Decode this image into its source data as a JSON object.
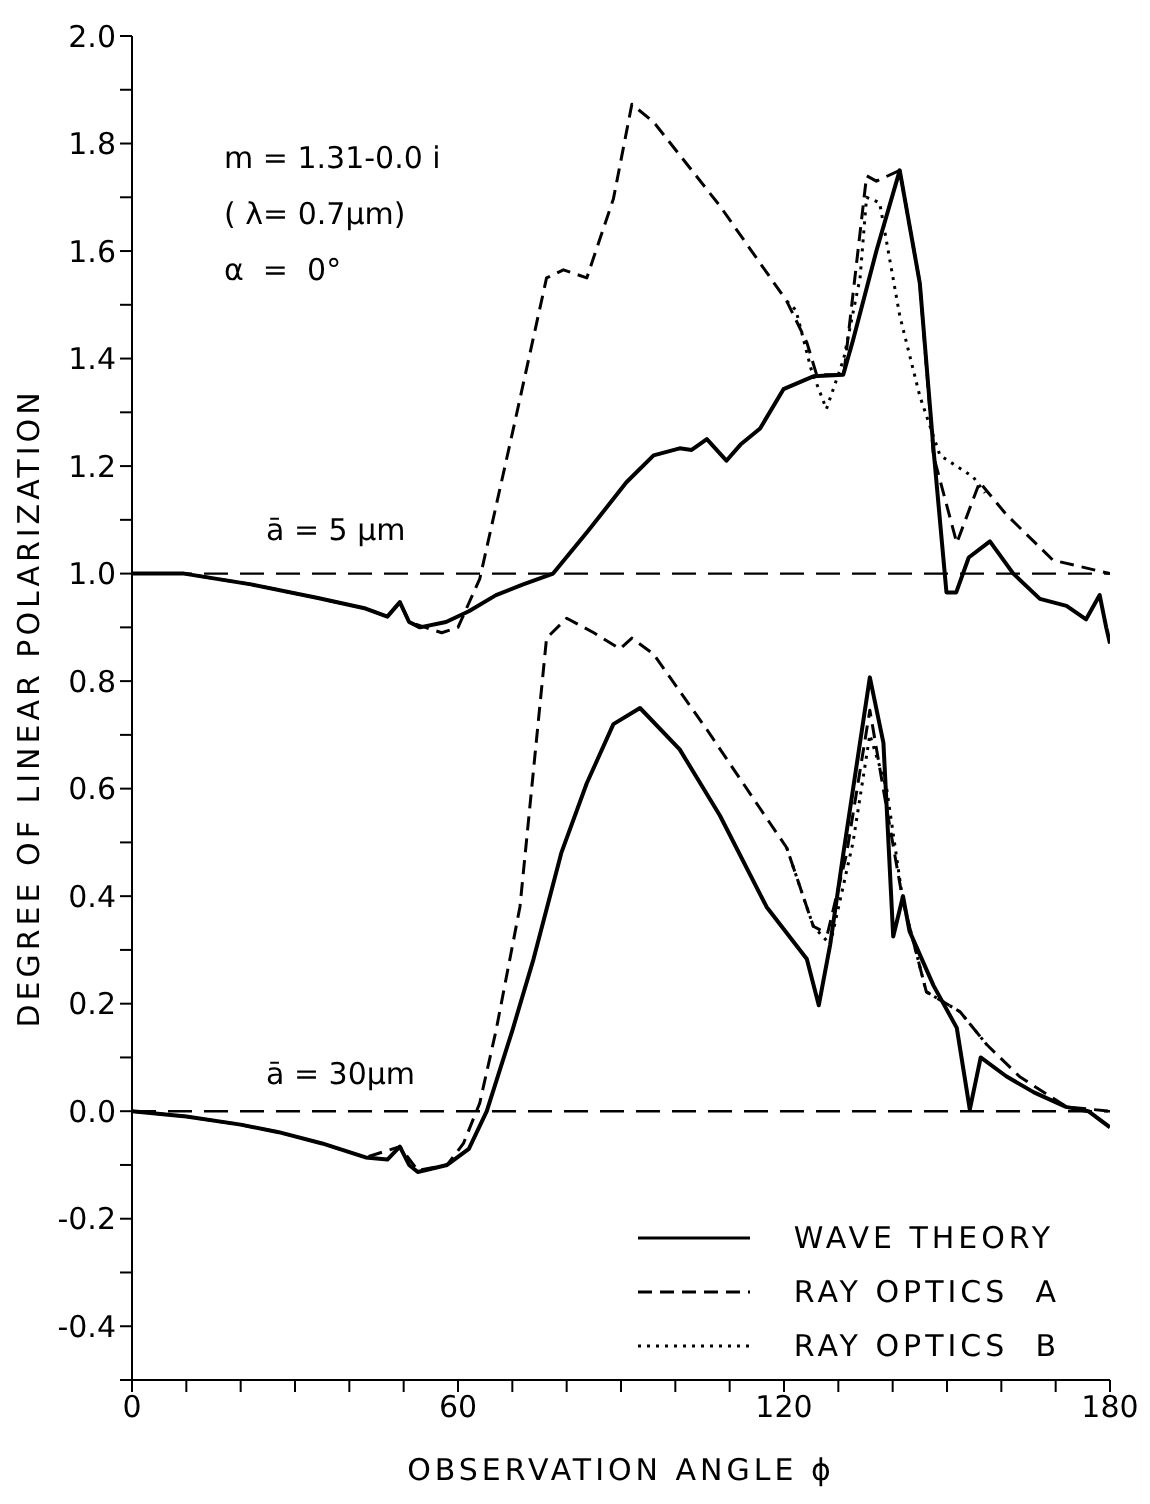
{
  "chart_data": {
    "type": "line",
    "xlabel": "OBSERVATION ANGLE ϕ",
    "ylabel": "DEGREE OF LINEAR POLARIZATION",
    "xlim": [
      0,
      180
    ],
    "xticks": [
      0,
      {
        "value": 10,
        "label": null
      },
      {
        "value": 20,
        "label": null
      },
      {
        "value": 30,
        "label": null
      },
      {
        "value": 40,
        "label": null
      },
      {
        "value": 50,
        "label": null
      },
      60,
      {
        "value": 70,
        "label": null
      },
      {
        "value": 80,
        "label": null
      },
      {
        "value": 90,
        "label": null
      },
      {
        "value": 100,
        "label": null
      },
      {
        "value": 110,
        "label": null
      },
      120,
      {
        "value": 130,
        "label": null
      },
      {
        "value": 140,
        "label": null
      },
      {
        "value": 150,
        "label": null
      },
      {
        "value": 160,
        "label": null
      },
      {
        "value": 170,
        "label": null
      },
      180
    ],
    "ylim": [
      -0.5,
      2.0
    ],
    "yticks": [
      {
        "value": -0.5,
        "label": null
      },
      -0.4,
      {
        "value": -0.3,
        "label": null
      },
      -0.2,
      {
        "value": -0.1,
        "label": null
      },
      {
        "value": 0,
        "label": "0.0"
      },
      {
        "value": 0.1,
        "label": null
      },
      0.2,
      {
        "value": 0.3,
        "label": null
      },
      0.4,
      {
        "value": 0.5,
        "label": null
      },
      0.6,
      {
        "value": 0.7,
        "label": null
      },
      0.8,
      {
        "value": 0.9,
        "label": null
      },
      {
        "value": 1.0,
        "label": "1.0"
      },
      {
        "value": 1.1,
        "label": null
      },
      1.2,
      {
        "value": 1.3,
        "label": null
      },
      1.4,
      {
        "value": 1.5,
        "label": null
      },
      1.6,
      {
        "value": 1.7,
        "label": null
      },
      1.8,
      {
        "value": 1.9,
        "label": null
      },
      {
        "value": 2.0,
        "label": "2.0"
      }
    ],
    "annotations": [
      "m = 1.31-0.0 i",
      "( λ= 0.7µm)",
      "α  =  0°",
      "ā = 5 µm",
      "ā = 30µm"
    ],
    "ref_lines": [
      {
        "axis": "y",
        "value": 0,
        "color": "#000000",
        "line_style": "dashed"
      },
      {
        "axis": "y",
        "value": 1.0,
        "color": "#000000",
        "line_style": "dashed"
      }
    ],
    "legend": "bottom right",
    "marker": "none",
    "series": [
      {
        "name": "WAVE THEORY",
        "color": "#000000",
        "line_style": "solid",
        "x": [
          0,
          10,
          20,
          27,
          35,
          43,
          47,
          49.3,
          51,
          52.6,
          58,
          62,
          65.3,
          70,
          73.9,
          79,
          83.7,
          88.6,
          93.5,
          100.8,
          108.2,
          116.8,
          124.2,
          126.4,
          128.5,
          130.9,
          135.8,
          138.3,
          140.1,
          141.9,
          143.1,
          147.5,
          151.8,
          154.2,
          156.2,
          160.9,
          166,
          171.9,
          176,
          180
        ],
        "values": [
          0,
          -0.01,
          -0.025,
          -0.039,
          -0.06,
          -0.086,
          -0.09,
          -0.066,
          -0.1,
          -0.113,
          -0.1,
          -0.07,
          0,
          0.15,
          0.283,
          0.48,
          0.61,
          0.72,
          0.75,
          0.673,
          0.55,
          0.38,
          0.283,
          0.197,
          0.31,
          0.478,
          0.807,
          0.685,
          0.325,
          0.4,
          0.335,
          0.234,
          0.155,
          0.003,
          0.1,
          0.065,
          0.035,
          0.008,
          0,
          -0.03
        ]
      },
      {
        "name": "RAY OPTICS  A",
        "color": "#000000",
        "line_style": "dashed",
        "x": [
          0,
          10,
          20,
          27,
          35,
          43,
          49.3,
          52.6,
          58,
          61,
          64,
          67,
          71.4,
          76.3,
          80,
          85,
          89.8,
          92,
          96,
          105.8,
          115.6,
          120.5,
          125.4,
          128,
          131.5,
          135.8,
          138.9,
          141.9,
          146.2,
          152.4,
          157.3,
          163.4,
          172,
          180
        ],
        "values": [
          0,
          -0.01,
          -0.025,
          -0.039,
          -0.06,
          -0.086,
          -0.066,
          -0.11,
          -0.1,
          -0.06,
          0.015,
          0.15,
          0.38,
          0.88,
          0.917,
          0.89,
          0.86,
          0.88,
          0.85,
          0.71,
          0.563,
          0.49,
          0.344,
          0.33,
          0.478,
          0.746,
          0.563,
          0.39,
          0.222,
          0.185,
          0.124,
          0.064,
          0.008,
          0
        ]
      },
      {
        "name": "RAY OPTICS  B",
        "color": "#000000",
        "line_style": "dotted",
        "x": [
          120.5,
          125.4,
          128.5,
          132.7,
          135.8,
          138.9,
          141.9,
          146.2,
          152.4,
          157.3
        ],
        "values": [
          0.49,
          0.344,
          0.31,
          0.5,
          0.7,
          0.6,
          0.39,
          0.222,
          0.185,
          0.124
        ]
      },
      {
        "color": "#000000",
        "line_style": "solid",
        "x": [
          0,
          9.6,
          21.9,
          34,
          43,
          47,
          49.3,
          51,
          53,
          57.8,
          62,
          67,
          72,
          77.5,
          84,
          91,
          96,
          100.8,
          103,
          105.8,
          109.4,
          112,
          115.6,
          119.9,
          125.4,
          130.9,
          132.7,
          137,
          141.3,
          145,
          147.5,
          149.9,
          151.7,
          154,
          157.9,
          162.2,
          167.1,
          172,
          175.6,
          178.1,
          179.3,
          180
        ],
        "values": [
          1.0,
          1.0,
          0.98,
          0.955,
          0.935,
          0.92,
          0.947,
          0.91,
          0.9,
          0.91,
          0.93,
          0.96,
          0.98,
          1.0,
          1.08,
          1.17,
          1.22,
          1.233,
          1.23,
          1.25,
          1.21,
          1.24,
          1.27,
          1.343,
          1.367,
          1.37,
          1.434,
          1.6,
          1.75,
          1.54,
          1.233,
          0.965,
          0.965,
          1.03,
          1.06,
          1.0,
          0.953,
          0.94,
          0.915,
          0.96,
          0.9,
          0.87
        ]
      },
      {
        "color": "#000000",
        "line_style": "dashed",
        "x": [
          0,
          9.6,
          21.9,
          34,
          43,
          47,
          49.3,
          51,
          54,
          57,
          60,
          64,
          70.2,
          76.3,
          79.4,
          83.7,
          88.6,
          92,
          96,
          108.2,
          120.5,
          124.2,
          126,
          131,
          135.2,
          137,
          141.3,
          145,
          147.5,
          151.8,
          156,
          160.9,
          169.5,
          180
        ],
        "values": [
          1.0,
          1.0,
          0.98,
          0.955,
          0.935,
          0.92,
          0.947,
          0.91,
          0.9,
          0.89,
          0.9,
          0.99,
          1.27,
          1.55,
          1.565,
          1.55,
          1.697,
          1.873,
          1.84,
          1.684,
          1.507,
          1.43,
          1.37,
          1.37,
          1.74,
          1.73,
          1.75,
          1.54,
          1.22,
          1.057,
          1.17,
          1.11,
          1.025,
          1.0
        ]
      },
      {
        "color": "#000000",
        "line_style": "dotted",
        "x": [
          120.5,
          122.2,
          125,
          127.8,
          131,
          134,
          135.2,
          137.6,
          141.3,
          145,
          148.7,
          154.8,
          157
        ],
        "values": [
          1.507,
          1.49,
          1.38,
          1.306,
          1.4,
          1.55,
          1.7,
          1.69,
          1.48,
          1.33,
          1.22,
          1.18,
          1.15
        ]
      }
    ]
  }
}
